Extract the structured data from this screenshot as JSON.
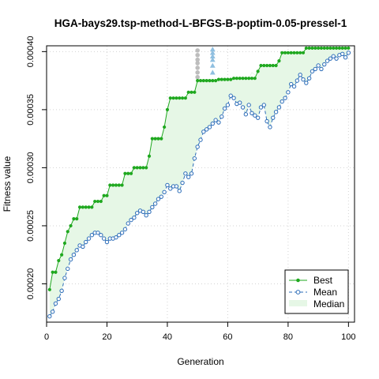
{
  "chart_data": {
    "type": "line",
    "title": "HGA-bays29.tsp-method-L-BFGS-B-poptim-0.05-pressel-1",
    "xlabel": "Generation",
    "ylabel": "Fitness value",
    "xlim": [
      0,
      102
    ],
    "ylim": [
      0.000167,
      0.000405
    ],
    "x_ticks": [
      0,
      20,
      40,
      60,
      80,
      100
    ],
    "y_ticks": [
      0.0002,
      0.00025,
      0.0003,
      0.00035,
      0.0004
    ],
    "x_tick_labels": [
      "0",
      "20",
      "40",
      "60",
      "80",
      "100"
    ],
    "y_tick_labels": [
      "0.00020",
      "0.00025",
      "0.00030",
      "0.00035",
      "0.00040"
    ],
    "grid": true,
    "legend_position": "bottom-right",
    "colors": {
      "best": "#1fa81f",
      "mean": "#2b6cb8",
      "median_fill": "#e6f7e6",
      "grid": "#d3d3d3",
      "gray_dots": "#bdbdbd",
      "blue_triangles": "#8fbfe0"
    },
    "series": [
      {
        "name": "Best",
        "x": [
          1,
          2,
          3,
          4,
          5,
          6,
          7,
          8,
          9,
          10,
          11,
          12,
          13,
          14,
          15,
          16,
          17,
          18,
          19,
          20,
          21,
          22,
          23,
          24,
          25,
          26,
          27,
          28,
          29,
          30,
          31,
          32,
          33,
          34,
          35,
          36,
          37,
          38,
          39,
          40,
          41,
          42,
          43,
          44,
          45,
          46,
          47,
          48,
          49,
          50,
          51,
          52,
          53,
          54,
          55,
          56,
          57,
          58,
          59,
          60,
          61,
          62,
          63,
          64,
          65,
          66,
          67,
          68,
          69,
          70,
          71,
          72,
          73,
          74,
          75,
          76,
          77,
          78,
          79,
          80,
          81,
          82,
          83,
          84,
          85,
          86,
          87,
          88,
          89,
          90,
          91,
          92,
          93,
          94,
          95,
          96,
          97,
          98,
          99,
          100
        ],
        "values": [
          0.000195,
          0.00021,
          0.00021,
          0.00022,
          0.000225,
          0.000235,
          0.000245,
          0.00025,
          0.000256,
          0.000256,
          0.000266,
          0.000266,
          0.000266,
          0.000266,
          0.000266,
          0.000271,
          0.000271,
          0.000271,
          0.000276,
          0.000276,
          0.000285,
          0.000285,
          0.000285,
          0.000285,
          0.000285,
          0.000295,
          0.000295,
          0.000295,
          0.0003,
          0.0003,
          0.0003,
          0.0003,
          0.0003,
          0.00031,
          0.000325,
          0.000325,
          0.000325,
          0.000325,
          0.000335,
          0.00035,
          0.00036,
          0.00036,
          0.00036,
          0.00036,
          0.00036,
          0.00036,
          0.000365,
          0.000365,
          0.000365,
          0.000375,
          0.000375,
          0.000375,
          0.000375,
          0.000375,
          0.000375,
          0.000375,
          0.000376,
          0.000376,
          0.000376,
          0.000376,
          0.000376,
          0.000377,
          0.000377,
          0.000377,
          0.000377,
          0.000377,
          0.000377,
          0.000377,
          0.000377,
          0.000383,
          0.000388,
          0.000388,
          0.000388,
          0.000388,
          0.000388,
          0.000388,
          0.000392,
          0.000399,
          0.000399,
          0.000399,
          0.000399,
          0.000399,
          0.000399,
          0.000399,
          0.000399,
          0.000403,
          0.000403,
          0.000403,
          0.000403,
          0.000403,
          0.000403,
          0.000403,
          0.000403,
          0.000403,
          0.000403,
          0.000403,
          0.000403,
          0.000403,
          0.000403,
          0.000403
        ]
      },
      {
        "name": "Mean",
        "x": [
          1,
          2,
          3,
          4,
          5,
          6,
          7,
          8,
          9,
          10,
          11,
          12,
          13,
          14,
          15,
          16,
          17,
          18,
          19,
          20,
          21,
          22,
          23,
          24,
          25,
          26,
          27,
          28,
          29,
          30,
          31,
          32,
          33,
          34,
          35,
          36,
          37,
          38,
          39,
          40,
          41,
          42,
          43,
          44,
          45,
          46,
          47,
          48,
          49,
          50,
          51,
          52,
          53,
          54,
          55,
          56,
          57,
          58,
          59,
          60,
          61,
          62,
          63,
          64,
          65,
          66,
          67,
          68,
          69,
          70,
          71,
          72,
          73,
          74,
          75,
          76,
          77,
          78,
          79,
          80,
          81,
          82,
          83,
          84,
          85,
          86,
          87,
          88,
          89,
          90,
          91,
          92,
          93,
          94,
          95,
          96,
          97,
          98,
          99,
          100
        ],
        "values": [
          0.000172,
          0.000176,
          0.000183,
          0.000187,
          0.000194,
          0.000205,
          0.000213,
          0.000221,
          0.000225,
          0.000229,
          0.000233,
          0.000232,
          0.000236,
          0.000239,
          0.000242,
          0.000244,
          0.000244,
          0.000242,
          0.000239,
          0.000236,
          0.000239,
          0.000239,
          0.00024,
          0.000242,
          0.000244,
          0.000247,
          0.000252,
          0.000255,
          0.000257,
          0.000261,
          0.000263,
          0.000262,
          0.000259,
          0.000262,
          0.000266,
          0.000269,
          0.000273,
          0.000275,
          0.000279,
          0.000285,
          0.000282,
          0.000284,
          0.000284,
          0.00028,
          0.000287,
          0.000295,
          0.000292,
          0.000295,
          0.000308,
          0.000318,
          0.000324,
          0.000331,
          0.000333,
          0.000335,
          0.000338,
          0.000341,
          0.000339,
          0.000344,
          0.000351,
          0.000354,
          0.000362,
          0.00036,
          0.000355,
          0.000356,
          0.000352,
          0.000346,
          0.000354,
          0.000347,
          0.000345,
          0.000343,
          0.000352,
          0.000354,
          0.00034,
          0.000335,
          0.000343,
          0.000348,
          0.000352,
          0.000357,
          0.00036,
          0.000365,
          0.000372,
          0.00037,
          0.000375,
          0.00038,
          0.000376,
          0.000373,
          0.000377,
          0.000383,
          0.000385,
          0.000388,
          0.000385,
          0.000389,
          0.000392,
          0.000394,
          0.000396,
          0.000394,
          0.000397,
          0.000398,
          0.000395,
          0.000399
        ]
      },
      {
        "name": "Median",
        "x": [
          1,
          2,
          3,
          4,
          5,
          6,
          7,
          8,
          9,
          10,
          11,
          12,
          13,
          14,
          15,
          16,
          17,
          18,
          19,
          20,
          21,
          22,
          23,
          24,
          25,
          26,
          27,
          28,
          29,
          30,
          31,
          32,
          33,
          34,
          35,
          36,
          37,
          38,
          39,
          40,
          41,
          42,
          43,
          44,
          45,
          46,
          47,
          48,
          49,
          50,
          51,
          52,
          53,
          54,
          55,
          56,
          57,
          58,
          59,
          60,
          61,
          62,
          63,
          64,
          65,
          66,
          67,
          68,
          69,
          70,
          71,
          72,
          73,
          74,
          75,
          76,
          77,
          78,
          79,
          80,
          81,
          82,
          83,
          84,
          85,
          86,
          87,
          88,
          89,
          90,
          91,
          92,
          93,
          94,
          95,
          96,
          97,
          98,
          99,
          100
        ],
        "values": [
          0.000176,
          0.000182,
          0.000189,
          0.000195,
          0.000203,
          0.000214,
          0.000222,
          0.000229,
          0.000233,
          0.000237,
          0.000241,
          0.000242,
          0.000246,
          0.000249,
          0.000252,
          0.000255,
          0.000256,
          0.000257,
          0.000257,
          0.000258,
          0.00026,
          0.000262,
          0.000264,
          0.000267,
          0.00027,
          0.000274,
          0.000277,
          0.00028,
          0.000283,
          0.000286,
          0.000288,
          0.00029,
          0.000291,
          0.000293,
          0.000296,
          0.0003,
          0.000304,
          0.000308,
          0.000312,
          0.000318,
          0.000318,
          0.00032,
          0.000322,
          0.000325,
          0.00033,
          0.000336,
          0.00034,
          0.000344,
          0.00035,
          0.000357,
          0.000363,
          0.000368,
          0.00037,
          0.000372,
          0.000374,
          0.000375,
          0.000375,
          0.000376,
          0.000376,
          0.000376,
          0.000376,
          0.00037,
          0.000362,
          0.000366,
          0.000364,
          0.00036,
          0.000377,
          0.000382,
          0.00038,
          0.000378,
          0.000384,
          0.000386,
          0.00038,
          0.000378,
          0.000385,
          0.000388,
          0.00039,
          0.000394,
          0.000396,
          0.000398,
          0.000399,
          0.000399,
          0.000399,
          0.000399,
          0.000399,
          0.0004,
          0.000401,
          0.000402,
          0.000403,
          0.000403,
          0.000403,
          0.000403,
          0.000403,
          0.000403,
          0.000403,
          0.000403,
          0.000403,
          0.000403,
          0.000403,
          0.000403
        ]
      }
    ],
    "annotations": {
      "gray_dots": {
        "x": 50,
        "values": [
          0.000401,
          0.000397,
          0.000393,
          0.00039,
          0.000386,
          0.000382,
          0.000378
        ]
      },
      "blue_triangles": {
        "x": 55,
        "values": [
          0.000402,
          0.000399,
          0.000396,
          0.000393,
          0.000388,
          0.000382
        ]
      }
    },
    "legend": {
      "entries": [
        "Best",
        "Mean",
        "Median"
      ]
    }
  }
}
